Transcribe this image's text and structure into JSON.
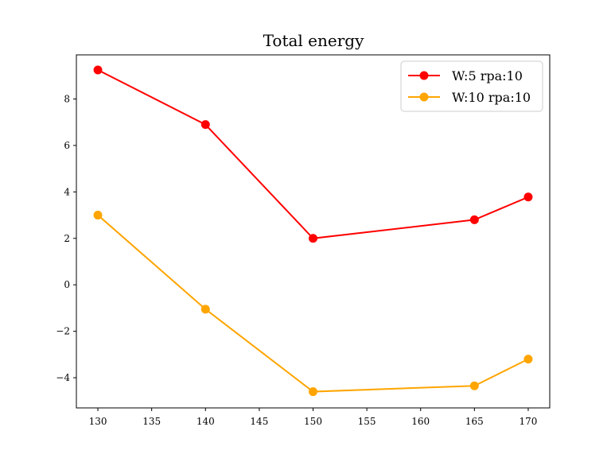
{
  "chart_data": {
    "type": "line",
    "title": "Total energy",
    "xlabel": "",
    "ylabel": "",
    "xlim": [
      128,
      172
    ],
    "ylim": [
      -5.3,
      9.9
    ],
    "xticks": [
      130,
      135,
      140,
      145,
      150,
      155,
      160,
      165,
      170
    ],
    "yticks": [
      -4,
      -2,
      0,
      2,
      4,
      6,
      8
    ],
    "ytick_labels": [
      "−4",
      "−2",
      "0",
      "2",
      "4",
      "6",
      "8"
    ],
    "grid": false,
    "legend_position": "top-right",
    "series": [
      {
        "name": "W:5 rpa:10",
        "color": "#ff0000",
        "marker": "circle",
        "x": [
          130,
          140,
          150,
          165,
          170
        ],
        "y": [
          9.25,
          6.9,
          2.0,
          2.8,
          3.78
        ]
      },
      {
        "name": "W:10 rpa:10",
        "color": "#ffa500",
        "marker": "circle",
        "x": [
          130,
          140,
          150,
          165,
          170
        ],
        "y": [
          3.0,
          -1.05,
          -4.6,
          -4.35,
          -3.2
        ]
      }
    ]
  }
}
